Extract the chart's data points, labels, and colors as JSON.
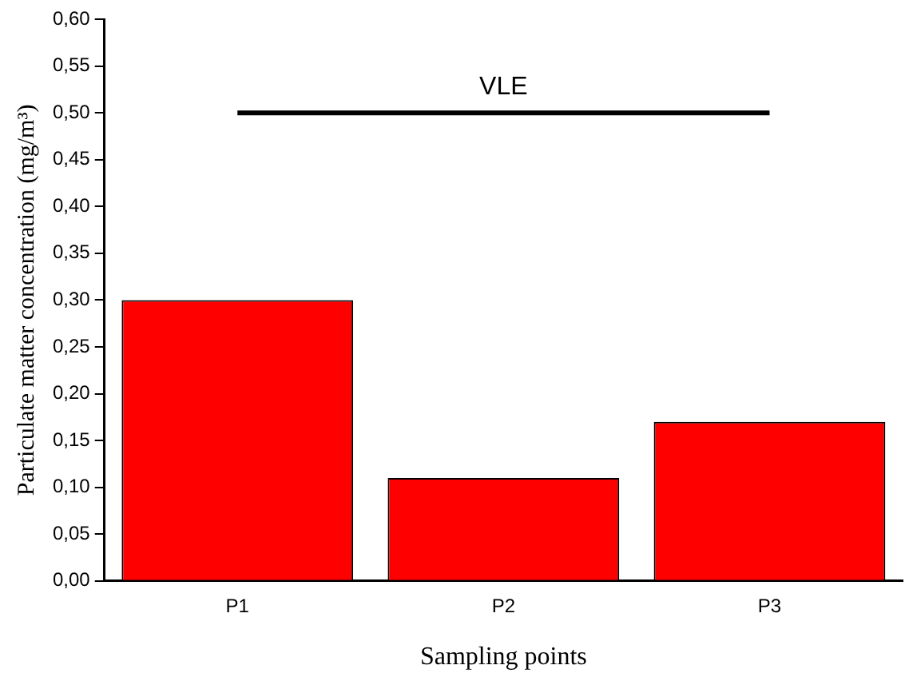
{
  "chart_data": {
    "type": "bar",
    "xlabel": "Sampling points",
    "ylabel": "Particulate matter concentration (mg/m³)",
    "categories": [
      "P1",
      "P2",
      "P3"
    ],
    "values": [
      0.3,
      0.11,
      0.17
    ],
    "color": "#ff0000",
    "ylim": [
      0,
      0.6
    ],
    "yticks": [
      {
        "value": 0,
        "label": "0,00"
      },
      {
        "value": 0.05,
        "label": "0,05"
      },
      {
        "value": 0.1,
        "label": "0,10"
      },
      {
        "value": 0.15,
        "label": "0,15"
      },
      {
        "value": 0.2,
        "label": "0,20"
      },
      {
        "value": 0.25,
        "label": "0,25"
      },
      {
        "value": 0.3,
        "label": "0,30"
      },
      {
        "value": 0.35,
        "label": "0,35"
      },
      {
        "value": 0.4,
        "label": "0,40"
      },
      {
        "value": 0.45,
        "label": "0,45"
      },
      {
        "value": 0.5,
        "label": "0,50"
      },
      {
        "value": 0.55,
        "label": "0,55"
      },
      {
        "value": 0.6,
        "label": "0,60"
      }
    ],
    "ref_lines": [
      {
        "axis": "y",
        "value": 0.5,
        "label": "VLE",
        "color": "#000000"
      }
    ],
    "grid": false,
    "legend": false
  }
}
